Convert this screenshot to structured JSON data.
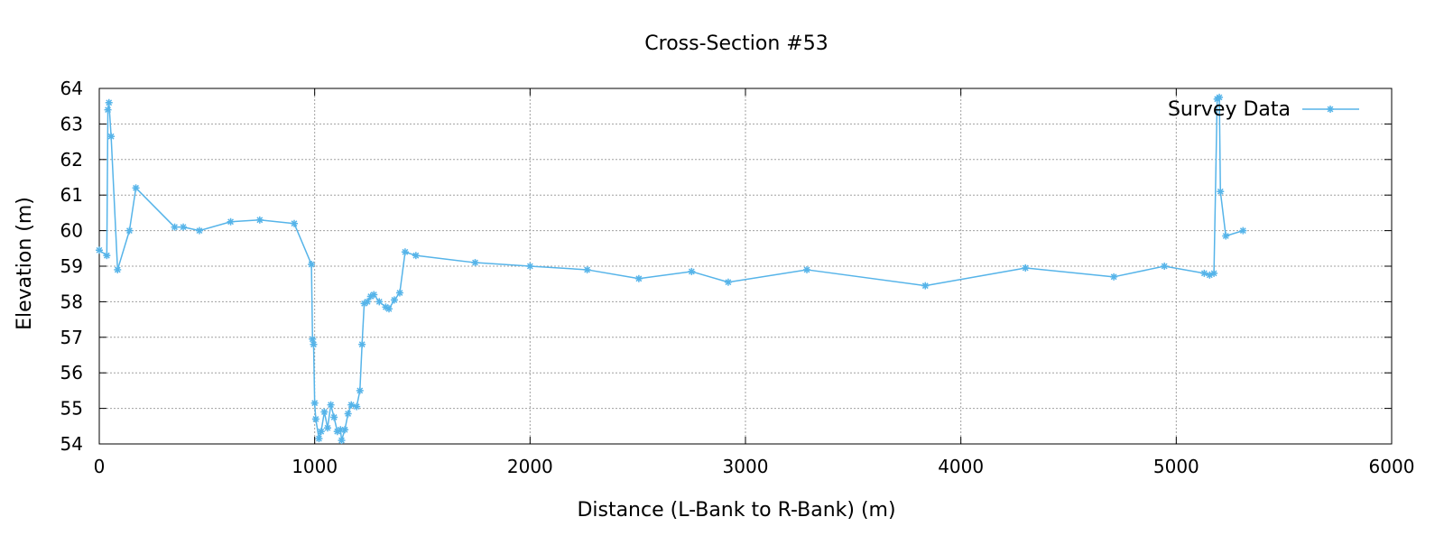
{
  "chart_data": {
    "type": "line",
    "title": "Cross-Section #53",
    "xlabel": "Distance (L-Bank to R-Bank) (m)",
    "ylabel": "Elevation (m)",
    "xlim": [
      0,
      6000
    ],
    "ylim": [
      54,
      64
    ],
    "x_ticks": [
      0,
      1000,
      2000,
      3000,
      4000,
      5000,
      6000
    ],
    "y_ticks": [
      54,
      55,
      56,
      57,
      58,
      59,
      60,
      61,
      62,
      63,
      64
    ],
    "grid": true,
    "legend_position": "top-right",
    "color": "#56b4e9",
    "series": [
      {
        "name": "Survey Data",
        "marker": "asterisk",
        "points": [
          [
            0,
            59.45
          ],
          [
            35,
            59.3
          ],
          [
            40,
            63.4
          ],
          [
            45,
            63.6
          ],
          [
            55,
            62.65
          ],
          [
            85,
            58.9
          ],
          [
            140,
            60.0
          ],
          [
            170,
            61.2
          ],
          [
            350,
            60.1
          ],
          [
            390,
            60.1
          ],
          [
            465,
            60.0
          ],
          [
            610,
            60.25
          ],
          [
            745,
            60.3
          ],
          [
            905,
            60.2
          ],
          [
            985,
            59.05
          ],
          [
            990,
            56.95
          ],
          [
            995,
            56.8
          ],
          [
            1000,
            55.15
          ],
          [
            1005,
            54.7
          ],
          [
            1020,
            54.15
          ],
          [
            1030,
            54.35
          ],
          [
            1045,
            54.9
          ],
          [
            1060,
            54.45
          ],
          [
            1075,
            55.1
          ],
          [
            1090,
            54.75
          ],
          [
            1105,
            54.35
          ],
          [
            1120,
            54.4
          ],
          [
            1125,
            54.1
          ],
          [
            1140,
            54.4
          ],
          [
            1155,
            54.85
          ],
          [
            1170,
            55.1
          ],
          [
            1195,
            55.05
          ],
          [
            1210,
            55.5
          ],
          [
            1220,
            56.8
          ],
          [
            1230,
            57.95
          ],
          [
            1245,
            58.0
          ],
          [
            1260,
            58.15
          ],
          [
            1275,
            58.2
          ],
          [
            1300,
            58.0
          ],
          [
            1330,
            57.85
          ],
          [
            1345,
            57.8
          ],
          [
            1370,
            58.05
          ],
          [
            1395,
            58.25
          ],
          [
            1420,
            59.4
          ],
          [
            1470,
            59.3
          ],
          [
            1745,
            59.1
          ],
          [
            2000,
            59.0
          ],
          [
            2265,
            58.9
          ],
          [
            2505,
            58.65
          ],
          [
            2750,
            58.85
          ],
          [
            2920,
            58.55
          ],
          [
            3285,
            58.9
          ],
          [
            3835,
            58.45
          ],
          [
            4300,
            58.95
          ],
          [
            4710,
            58.7
          ],
          [
            4945,
            59.0
          ],
          [
            5130,
            58.8
          ],
          [
            5155,
            58.75
          ],
          [
            5175,
            58.8
          ],
          [
            5190,
            63.7
          ],
          [
            5200,
            63.75
          ],
          [
            5205,
            61.1
          ],
          [
            5230,
            59.85
          ],
          [
            5310,
            60.0
          ]
        ]
      }
    ]
  }
}
